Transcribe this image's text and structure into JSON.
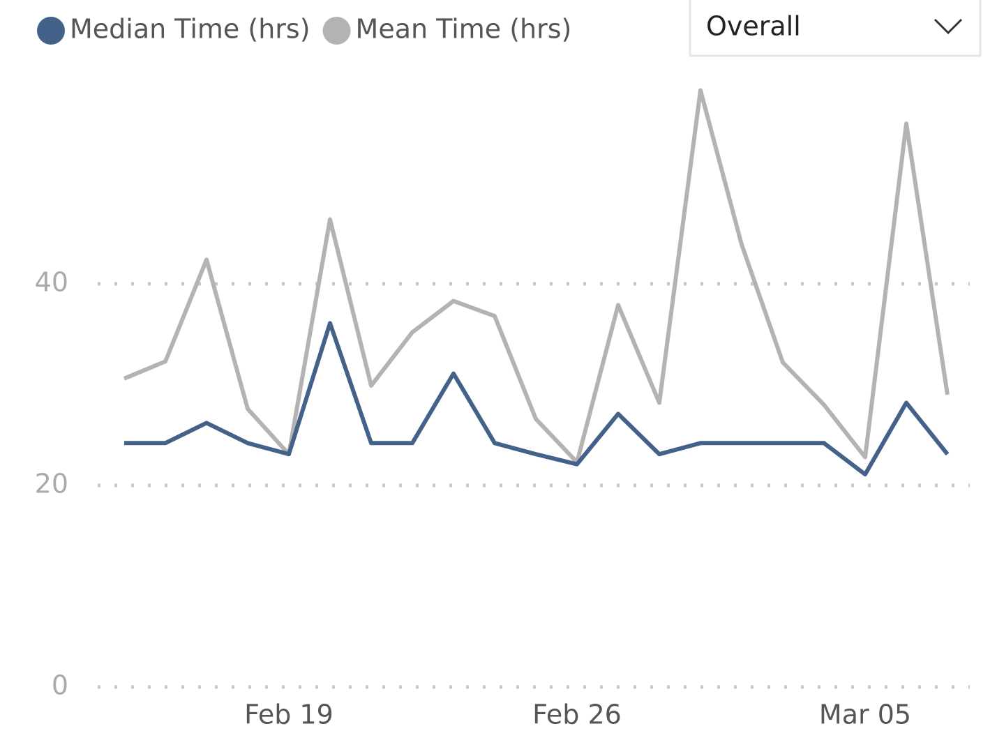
{
  "chart_data": {
    "type": "line",
    "categories": [
      null,
      null,
      null,
      null,
      "Feb 19",
      null,
      null,
      null,
      null,
      null,
      null,
      "Feb 26",
      null,
      null,
      null,
      null,
      null,
      null,
      "Mar 05",
      null,
      null
    ],
    "series": [
      {
        "name": "Median Time (hrs)",
        "color": "#44618a",
        "values": [
          24.2,
          24.2,
          26.2,
          24.2,
          23.1,
          36.1,
          24.2,
          24.2,
          31.1,
          24.2,
          23.1,
          22.1,
          27.1,
          23.1,
          24.2,
          24.2,
          24.2,
          24.2,
          21.1,
          28.2,
          23.1
        ]
      },
      {
        "name": "Mean Time (hrs)",
        "color": "#b3b3b3",
        "values": [
          30.6,
          32.3,
          42.4,
          27.6,
          23.1,
          46.4,
          29.9,
          35.2,
          38.3,
          36.8,
          26.6,
          22.3,
          37.9,
          28.2,
          59.2,
          43.9,
          32.2,
          28.0,
          22.8,
          55.9,
          29.0
        ]
      }
    ],
    "ylim": [
      0,
      60
    ],
    "yticks": [
      0,
      20,
      40
    ],
    "grid": true,
    "dropdown": "Overall"
  }
}
